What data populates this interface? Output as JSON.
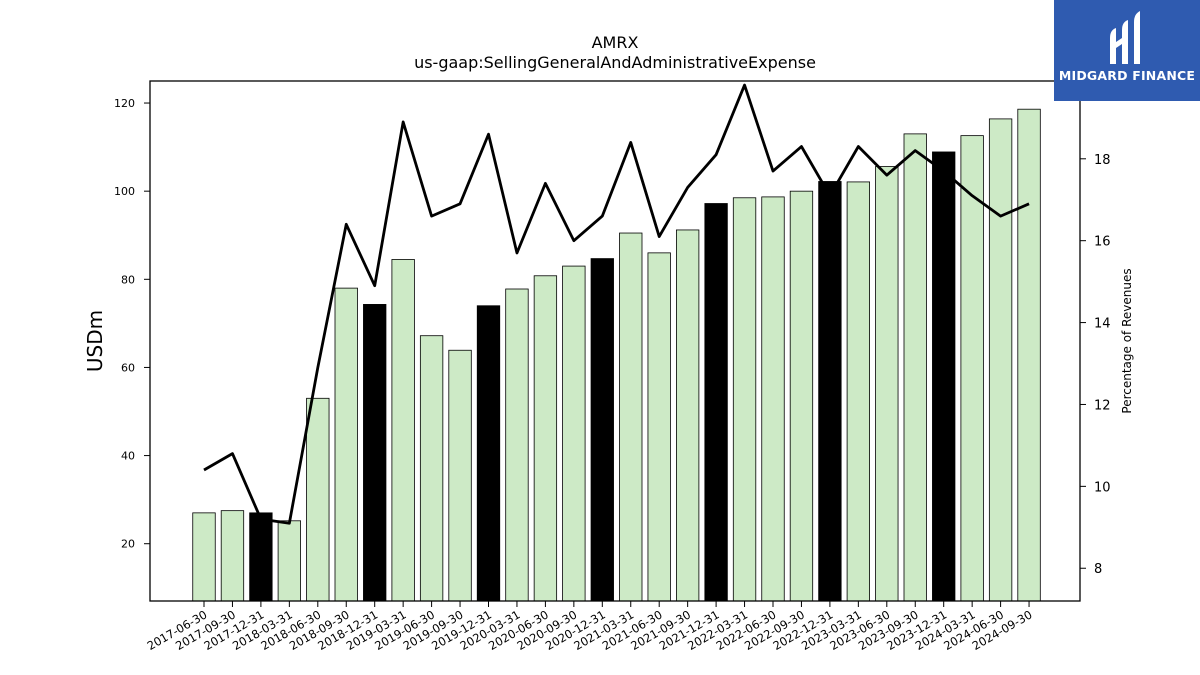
{
  "brand": {
    "name": "MIDGARD FINANCE",
    "color": "#2f5bb0"
  },
  "chart_data": {
    "type": "bar",
    "title": "AMRX",
    "subtitle": "us-gaap:SellingGeneralAndAdministrativeExpense",
    "ylabel": "USDm",
    "y2label": "Percentage of Revenues",
    "ylim": [
      7,
      125
    ],
    "y2lim": [
      7.2,
      19.9
    ],
    "yticks": [
      20,
      40,
      60,
      80,
      100,
      120
    ],
    "y2ticks": [
      8,
      10,
      12,
      14,
      16,
      18
    ],
    "grid": false,
    "categories": [
      "2017-06-30",
      "2017-09-30",
      "2017-12-31",
      "2018-03-31",
      "2018-06-30",
      "2018-09-30",
      "2018-12-31",
      "2019-03-31",
      "2019-06-30",
      "2019-09-30",
      "2019-12-31",
      "2020-03-31",
      "2020-06-30",
      "2020-09-30",
      "2020-12-31",
      "2021-03-31",
      "2021-06-30",
      "2021-09-30",
      "2021-12-31",
      "2022-03-31",
      "2022-06-30",
      "2022-09-30",
      "2022-12-31",
      "2023-03-31",
      "2023-06-30",
      "2023-09-30",
      "2023-12-31",
      "2024-03-31",
      "2024-06-30",
      "2024-09-30"
    ],
    "series": [
      {
        "values": [
          27.0,
          27.5,
          27.0,
          25.2,
          53.0,
          78.0,
          74.3,
          84.5,
          67.2,
          63.9,
          74.0,
          77.8,
          80.8,
          83.0,
          84.7,
          90.5,
          86.0,
          91.2,
          97.2,
          98.5,
          98.7,
          100.0,
          102.2,
          102.1,
          105.6,
          113.0,
          108.9,
          112.6,
          116.4,
          118.6
        ],
        "annual_flags": [
          false,
          false,
          true,
          false,
          false,
          false,
          true,
          false,
          false,
          false,
          true,
          false,
          false,
          false,
          true,
          false,
          false,
          false,
          true,
          false,
          false,
          false,
          true,
          false,
          false,
          false,
          true,
          false,
          false,
          false
        ],
        "color": "#cdeac6",
        "annual_color": "#000000"
      },
      {
        "axis": "right",
        "type": "line",
        "values": [
          10.4,
          10.8,
          9.2,
          9.1,
          12.9,
          16.4,
          14.9,
          18.9,
          16.6,
          16.9,
          18.6,
          15.7,
          17.4,
          16.0,
          16.6,
          18.4,
          16.1,
          17.3,
          18.1,
          19.8,
          17.7,
          18.3,
          17.1,
          18.3,
          17.6,
          18.2,
          17.7,
          17.1,
          16.6,
          16.9
        ],
        "color": "#000000"
      }
    ]
  }
}
